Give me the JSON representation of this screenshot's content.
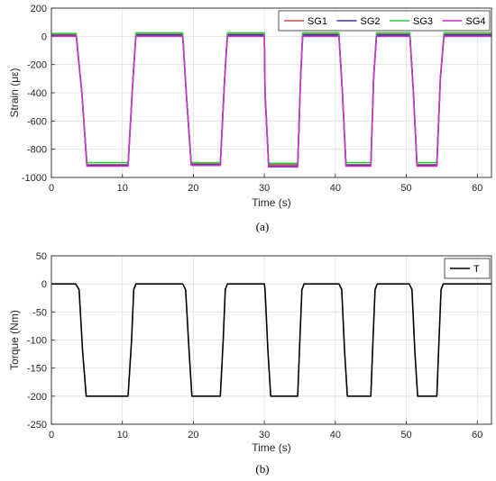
{
  "chart_data": [
    {
      "type": "line",
      "caption": "(a)",
      "xlabel": "Time (s)",
      "ylabel": "Strain (με)",
      "xlim": [
        0,
        62
      ],
      "ylim": [
        -1000,
        200
      ],
      "xticks": [
        0,
        10,
        20,
        30,
        40,
        50,
        60
      ],
      "yticks": [
        200,
        0,
        -200,
        -400,
        -600,
        -800,
        -1000
      ],
      "grid": true,
      "legend_position": "top-right",
      "series": [
        {
          "name": "SG1",
          "color": "#c0504d",
          "x": [
            0,
            3.5,
            4.3,
            5.0,
            10.8,
            11.5,
            11.9,
            18.5,
            19.0,
            19.7,
            23.8,
            24.4,
            24.8,
            30.0,
            30.1,
            30.6,
            34.7,
            35.1,
            35.4,
            40.5,
            41.0,
            41.5,
            45.0,
            45.4,
            45.8,
            50.5,
            51.0,
            51.5,
            54.3,
            54.8,
            55.3,
            62
          ],
          "y": [
            10,
            10,
            -400,
            -910,
            -910,
            -300,
            15,
            15,
            -400,
            -905,
            -905,
            -300,
            15,
            15,
            -400,
            -910,
            -910,
            -300,
            15,
            15,
            -400,
            -910,
            -910,
            -300,
            15,
            15,
            -400,
            -910,
            -910,
            -300,
            15,
            15
          ]
        },
        {
          "name": "SG2",
          "color": "#3b3b9a",
          "x": [
            0,
            3.5,
            4.3,
            5.0,
            10.8,
            11.5,
            11.9,
            18.5,
            19.0,
            19.7,
            23.8,
            24.4,
            24.8,
            30.0,
            30.1,
            30.6,
            34.7,
            35.1,
            35.4,
            40.5,
            41.0,
            41.5,
            45.0,
            45.4,
            45.8,
            50.5,
            51.0,
            51.5,
            54.3,
            54.8,
            55.3,
            62
          ],
          "y": [
            5,
            5,
            -400,
            -915,
            -915,
            -300,
            10,
            10,
            -400,
            -910,
            -910,
            -300,
            10,
            10,
            -400,
            -920,
            -920,
            -300,
            10,
            10,
            -400,
            -915,
            -915,
            -300,
            10,
            10,
            -400,
            -915,
            -915,
            -300,
            10,
            10
          ]
        },
        {
          "name": "SG3",
          "color": "#2ecc40",
          "x": [
            0,
            3.5,
            4.3,
            5.0,
            10.8,
            11.5,
            11.9,
            18.5,
            19.0,
            19.7,
            23.8,
            24.4,
            24.8,
            30.0,
            30.1,
            30.6,
            34.7,
            35.1,
            35.4,
            40.5,
            41.0,
            41.5,
            45.0,
            45.4,
            45.8,
            50.5,
            51.0,
            51.5,
            54.3,
            54.8,
            55.3,
            62
          ],
          "y": [
            20,
            20,
            -400,
            -895,
            -895,
            -300,
            25,
            25,
            -400,
            -895,
            -895,
            -300,
            25,
            25,
            -400,
            -900,
            -900,
            -300,
            25,
            25,
            -400,
            -895,
            -895,
            -300,
            25,
            25,
            -400,
            -895,
            -895,
            -300,
            25,
            25
          ]
        },
        {
          "name": "SG4",
          "color": "#cc33cc",
          "x": [
            0,
            3.5,
            4.3,
            5.0,
            10.8,
            11.5,
            11.9,
            18.5,
            19.0,
            19.7,
            23.8,
            24.4,
            24.8,
            30.0,
            30.1,
            30.6,
            34.7,
            35.1,
            35.4,
            40.5,
            41.0,
            41.5,
            45.0,
            45.4,
            45.8,
            50.5,
            51.0,
            51.5,
            54.3,
            54.8,
            55.3,
            62
          ],
          "y": [
            0,
            0,
            -400,
            -920,
            -920,
            -300,
            0,
            0,
            -400,
            -915,
            -915,
            -300,
            0,
            0,
            -400,
            -925,
            -925,
            -300,
            0,
            0,
            -400,
            -920,
            -920,
            -300,
            0,
            0,
            -400,
            -920,
            -920,
            -300,
            0,
            0
          ]
        }
      ]
    },
    {
      "type": "line",
      "caption": "(b)",
      "xlabel": "Time (s)",
      "ylabel": "Torque (Nm)",
      "xlim": [
        0,
        62
      ],
      "ylim": [
        -250,
        50
      ],
      "xticks": [
        0,
        10,
        20,
        30,
        40,
        50,
        60
      ],
      "yticks": [
        50,
        0,
        -50,
        -100,
        -150,
        -200,
        -250
      ],
      "grid": true,
      "legend_position": "top-right",
      "series": [
        {
          "name": "T",
          "color": "#000000",
          "x": [
            0,
            3.4,
            3.9,
            4.4,
            4.9,
            10.8,
            11.3,
            11.6,
            11.9,
            18.5,
            18.9,
            19.4,
            19.8,
            23.8,
            24.2,
            24.5,
            24.8,
            30.0,
            30.1,
            30.5,
            30.9,
            34.7,
            35.0,
            35.3,
            35.6,
            40.5,
            40.9,
            41.3,
            41.7,
            45.0,
            45.3,
            45.6,
            45.9,
            50.4,
            50.8,
            51.2,
            51.6,
            54.3,
            54.6,
            54.9,
            55.2,
            62
          ],
          "y": [
            0,
            0,
            -10,
            -120,
            -200,
            -200,
            -100,
            -10,
            0,
            0,
            -10,
            -120,
            -200,
            -200,
            -100,
            -10,
            0,
            0,
            -10,
            -120,
            -200,
            -200,
            -100,
            -10,
            0,
            0,
            -10,
            -120,
            -200,
            -200,
            -100,
            -10,
            0,
            0,
            -10,
            -120,
            -200,
            -200,
            -100,
            -10,
            0,
            0
          ]
        }
      ]
    }
  ]
}
